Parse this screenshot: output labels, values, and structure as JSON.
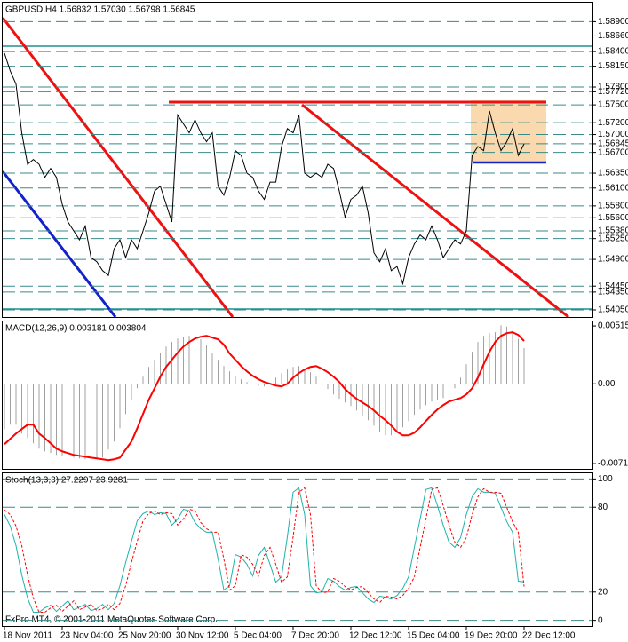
{
  "chart_data": {
    "type": "financial",
    "footer": "FxPro MT4, © 2001-2011 MetaQuotes Software Corp.",
    "categories": [
      "18 Nov 2011",
      null,
      null,
      null,
      null,
      null,
      null,
      null,
      null,
      null,
      "23 Nov 04:00",
      null,
      null,
      null,
      null,
      null,
      null,
      null,
      null,
      null,
      "25 Nov 20:00",
      null,
      null,
      null,
      null,
      null,
      null,
      null,
      null,
      null,
      "30 Nov 12:00",
      null,
      null,
      null,
      null,
      null,
      null,
      null,
      null,
      null,
      "5 Dec 04:00",
      null,
      null,
      null,
      null,
      null,
      null,
      null,
      null,
      null,
      "7 Dec 20:00",
      null,
      null,
      null,
      null,
      null,
      null,
      null,
      null,
      null,
      "12 Dec 12:00",
      null,
      null,
      null,
      null,
      null,
      null,
      null,
      null,
      null,
      "15 Dec 04:00",
      null,
      null,
      null,
      null,
      null,
      null,
      null,
      null,
      null,
      "19 Dec 20:00",
      null,
      null,
      null,
      null,
      null,
      null,
      null,
      null,
      null,
      "22 Dec 12:00"
    ],
    "panels": [
      {
        "type": "line",
        "title": "GBPUSD,H4  1.56832 1.57030 1.56798 1.56845",
        "ylim": [
          1.5393,
          1.5922
        ],
        "grid": true,
        "yticks": [
          {
            "value": 1.589,
            "label": "1.58900"
          },
          {
            "value": 1.5866,
            "label": "1.58660"
          },
          {
            "value": 1.584,
            "label": "1.58400"
          },
          {
            "value": 1.5815,
            "label": "1.58150"
          },
          {
            "value": 1.578,
            "label": "1.57800"
          },
          {
            "value": 1.5772,
            "label": "1.57720"
          },
          {
            "value": 1.575,
            "label": "1.57500"
          },
          {
            "value": 1.572,
            "label": "1.57200"
          },
          {
            "value": 1.57,
            "label": "1.57000"
          },
          {
            "value": 1.56845,
            "label": "1.56845"
          },
          {
            "value": 1.567,
            "label": "1.56700"
          },
          {
            "value": 1.5635,
            "label": "1.56350"
          },
          {
            "value": 1.561,
            "label": "1.56100"
          },
          {
            "value": 1.558,
            "label": "1.55800"
          },
          {
            "value": 1.556,
            "label": "1.55600"
          },
          {
            "value": 1.5538,
            "label": "1.55380"
          },
          {
            "value": 1.5525,
            "label": "1.55250"
          },
          {
            "value": 1.549,
            "label": "1.54900"
          },
          {
            "value": 1.5445,
            "label": "1.54450"
          },
          {
            "value": 1.5435,
            "label": "1.54350"
          },
          {
            "value": 1.5405,
            "label": "1.54050"
          }
        ],
        "series": [
          {
            "type": "line",
            "color": "#000000",
            "values": [
              1.5837,
              1.5807,
              1.5785,
              1.5703,
              1.565,
              1.5658,
              1.565,
              1.5628,
              1.5643,
              1.5628,
              1.5583,
              1.5553,
              1.5538,
              1.5523,
              1.5546,
              1.5493,
              1.5486,
              1.5471,
              1.5463,
              1.5508,
              1.5523,
              1.5493,
              1.5523,
              1.5508,
              1.5538,
              1.5568,
              1.5605,
              1.5613,
              1.5583,
              1.5553,
              1.5733,
              1.5718,
              1.5703,
              1.5725,
              1.5703,
              1.5688,
              1.5703,
              1.5613,
              1.5598,
              1.5628,
              1.5673,
              1.5665,
              1.5635,
              1.5628,
              1.5605,
              1.5591,
              1.562,
              1.562,
              1.568,
              1.571,
              1.5703,
              1.5733,
              1.5635,
              1.5628,
              1.5635,
              1.5628,
              1.565,
              1.5643,
              1.5605,
              1.5561,
              1.5591,
              1.5598,
              1.5613,
              1.5568,
              1.5501,
              1.5486,
              1.5508,
              1.5471,
              1.5478,
              1.5449,
              1.5493,
              1.5516,
              1.5531,
              1.5523,
              1.5546,
              1.5523,
              1.5493,
              1.5508,
              1.5523,
              1.5516,
              1.5538,
              1.5665,
              1.568,
              1.5673,
              1.574,
              1.5703,
              1.5673,
              1.5688,
              1.571,
              1.5665,
              1.56845
            ]
          }
        ]
      },
      {
        "type": "bar",
        "title": "MACD(12,26,9) 0.003181 0.003804",
        "ylim": [
          -0.00757,
          0.00555
        ],
        "grid": false,
        "yticks": [
          {
            "value": 0.00515,
            "label": "0.00515"
          },
          {
            "value": 0,
            "label": "0.00"
          },
          {
            "value": -0.0071,
            "label": "-0.00710"
          }
        ],
        "series": [
          {
            "type": "bar",
            "color": "#a0a0a0",
            "values": [
              -0.00403,
              -0.00364,
              -0.00364,
              -0.00443,
              -0.00483,
              -0.0053,
              -0.00577,
              -0.00601,
              -0.00617,
              -0.00633,
              -0.00641,
              -0.00649,
              -0.00657,
              -0.00664,
              -0.00672,
              -0.0068,
              -0.00672,
              -0.00657,
              -0.00585,
              -0.00514,
              -0.00396,
              -0.00269,
              -0.00142,
              -0.0004,
              0.00063,
              0.0015,
              0.00214,
              0.00277,
              0.00332,
              0.00372,
              0.00403,
              0.00419,
              0.00427,
              0.00411,
              0.00396,
              0.00348,
              0.00269,
              0.00214,
              0.00158,
              0.00111,
              0.00071,
              0.0004,
              0.00016,
              0,
              -0.00016,
              -0.00024,
              0,
              0.00055,
              0.00095,
              0.00127,
              0.0015,
              0.00158,
              0.00134,
              0.00103,
              0.00063,
              0.00016,
              -0.00047,
              -0.00095,
              -0.00134,
              -0.00166,
              -0.00198,
              -0.00237,
              -0.00285,
              -0.00324,
              -0.00372,
              -0.00427,
              -0.00459,
              -0.00459,
              -0.00435,
              -0.00388,
              -0.00332,
              -0.00277,
              -0.00229,
              -0.0019,
              -0.00158,
              -0.00142,
              -0.00127,
              -0.00095,
              -0.0004,
              0.00055,
              0.00174,
              0.00285,
              0.00372,
              0.00427,
              0.00451,
              0.00459,
              0.0052,
              0.0051,
              0.0047,
              0.004,
              0.003181
            ]
          },
          {
            "type": "line",
            "color": "#ff0000",
            "values": [
              -0.00538,
              -0.0049,
              -0.00443,
              -0.00403,
              -0.00364,
              -0.00364,
              -0.00443,
              -0.00483,
              -0.0053,
              -0.00577,
              -0.00601,
              -0.00617,
              -0.00633,
              -0.00641,
              -0.00649,
              -0.00657,
              -0.00664,
              -0.00672,
              -0.0068,
              -0.00672,
              -0.00657,
              -0.00585,
              -0.00514,
              -0.00396,
              -0.00269,
              -0.00142,
              -0.0004,
              0.00063,
              0.0015,
              0.00214,
              0.00277,
              0.00332,
              0.00372,
              0.00403,
              0.00419,
              0.00427,
              0.00411,
              0.00396,
              0.00348,
              0.00269,
              0.00214,
              0.00158,
              0.00111,
              0.00071,
              0.0004,
              0.00016,
              0,
              -0.00016,
              -0.00024,
              0,
              0.00055,
              0.00095,
              0.00127,
              0.0015,
              0.00158,
              0.00134,
              0.00103,
              0.00063,
              0.00016,
              -0.00047,
              -0.00095,
              -0.00134,
              -0.00166,
              -0.00198,
              -0.00237,
              -0.00285,
              -0.00324,
              -0.00372,
              -0.00427,
              -0.00459,
              -0.00459,
              -0.00435,
              -0.00388,
              -0.00332,
              -0.00277,
              -0.00229,
              -0.0019,
              -0.00158,
              -0.00142,
              -0.00127,
              -0.00095,
              -0.0004,
              0.00055,
              0.00174,
              0.00285,
              0.00372,
              0.00427,
              0.00451,
              0.00459,
              0.00435,
              0.003804
            ]
          }
        ]
      },
      {
        "type": "line",
        "title": "Stoch(13,3,3) 27.2297 23.9281",
        "ylim": [
          -4,
          104
        ],
        "grid": true,
        "yticks": [
          100,
          80,
          20,
          0
        ],
        "series": [
          {
            "type": "line",
            "color": "#20b2aa",
            "values": [
              74.8,
              66.7,
              52.8,
              32.1,
              15.7,
              5.7,
              5.7,
              8.8,
              10.7,
              6.3,
              10.1,
              13.8,
              7.5,
              9.4,
              11.3,
              6.9,
              8.2,
              11.3,
              7.5,
              11.9,
              24.5,
              40.9,
              56,
              70.4,
              75.5,
              77.4,
              74.8,
              76.1,
              75.5,
              67.3,
              71.7,
              78.6,
              77.4,
              69.2,
              64.8,
              62.3,
              62.3,
              43.4,
              21.4,
              24.5,
              46.5,
              44.7,
              39.6,
              31.4,
              45.9,
              51.6,
              39.6,
              27,
              30.8,
              59.1,
              90.6,
              93.7,
              74.8,
              24.5,
              19.5,
              20.1,
              29.6,
              27.7,
              23.9,
              21.4,
              23.3,
              23.9,
              19.5,
              15.1,
              12.6,
              17,
              16.4,
              15.1,
              17.6,
              22.6,
              30.8,
              51.6,
              71.7,
              92.5,
              93.7,
              81.1,
              67.3,
              55.3,
              51.6,
              58.5,
              74.8,
              87.4,
              93.1,
              90.6,
              90.6,
              89.9,
              79.9,
              69.8,
              62.3,
              27.7,
              27.2297
            ]
          },
          {
            "type": "line",
            "color": "#ff0000",
            "dash": true,
            "values": [
              78,
              74.8,
              66.7,
              52.8,
              32.1,
              15.7,
              5.7,
              5.7,
              8.8,
              10.7,
              6.3,
              10.1,
              13.8,
              7.5,
              9.4,
              11.3,
              6.9,
              8.2,
              11.3,
              7.5,
              11.9,
              24.5,
              40.9,
              56,
              70.4,
              75.5,
              77.4,
              74.8,
              76.1,
              75.5,
              67.3,
              71.7,
              78.6,
              77.4,
              69.2,
              64.8,
              62.3,
              62.3,
              43.4,
              21.4,
              24.5,
              46.5,
              44.7,
              39.6,
              31.4,
              45.9,
              51.6,
              39.6,
              27,
              30.8,
              59.1,
              90.6,
              93.7,
              74.8,
              24.5,
              19.5,
              20.1,
              29.6,
              27.7,
              23.9,
              21.4,
              23.3,
              23.9,
              19.5,
              15.1,
              12.6,
              17,
              16.4,
              15.1,
              17.6,
              22.6,
              30.8,
              51.6,
              71.7,
              92.5,
              93.7,
              81.1,
              67.3,
              55.3,
              51.6,
              58.5,
              74.8,
              87.4,
              93.1,
              90.6,
              90.6,
              89.9,
              79.9,
              69.8,
              62.3,
              23.9281
            ]
          }
        ]
      }
    ]
  }
}
